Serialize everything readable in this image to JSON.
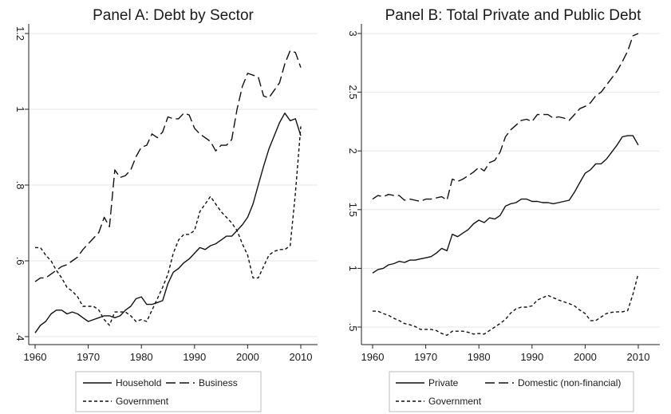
{
  "chart_data": [
    {
      "type": "line",
      "title": "Panel A: Debt by Sector",
      "xlabel": "",
      "ylabel": "",
      "xlim": [
        1960,
        2010
      ],
      "ylim": [
        0.4,
        1.2
      ],
      "xticks": [
        1960,
        1970,
        1980,
        1990,
        2000,
        2010
      ],
      "yticks": [
        0.4,
        0.6,
        0.8,
        1.0,
        1.2
      ],
      "ytick_labels": [
        ".4",
        ".6",
        ".8",
        "1",
        "1.2"
      ],
      "grid": true,
      "legend_position": "bottom",
      "series": [
        {
          "name": "Household",
          "style": "solid",
          "x": [
            1960,
            1961,
            1962,
            1963,
            1964,
            1965,
            1966,
            1967,
            1968,
            1969,
            1970,
            1971,
            1972,
            1973,
            1974,
            1975,
            1976,
            1977,
            1978,
            1979,
            1980,
            1981,
            1982,
            1983,
            1984,
            1985,
            1986,
            1987,
            1988,
            1989,
            1990,
            1991,
            1992,
            1993,
            1994,
            1995,
            1996,
            1997,
            1998,
            1999,
            2000,
            2001,
            2002,
            2003,
            2004,
            2005,
            2006,
            2007,
            2008,
            2009,
            2010
          ],
          "y": [
            0.41,
            0.43,
            0.44,
            0.46,
            0.47,
            0.47,
            0.46,
            0.465,
            0.46,
            0.45,
            0.44,
            0.445,
            0.45,
            0.455,
            0.455,
            0.45,
            0.455,
            0.47,
            0.48,
            0.5,
            0.505,
            0.485,
            0.485,
            0.49,
            0.495,
            0.54,
            0.57,
            0.58,
            0.595,
            0.605,
            0.62,
            0.635,
            0.63,
            0.64,
            0.645,
            0.655,
            0.665,
            0.665,
            0.68,
            0.695,
            0.715,
            0.75,
            0.8,
            0.85,
            0.895,
            0.93,
            0.965,
            0.99,
            0.97,
            0.975,
            0.93
          ]
        },
        {
          "name": "Business",
          "style": "longdash",
          "x": [
            1960,
            1961,
            1962,
            1963,
            1964,
            1965,
            1966,
            1967,
            1968,
            1969,
            1970,
            1971,
            1972,
            1973,
            1974,
            1975,
            1976,
            1977,
            1978,
            1979,
            1980,
            1981,
            1982,
            1983,
            1984,
            1985,
            1986,
            1987,
            1988,
            1989,
            1990,
            1991,
            1992,
            1993,
            1994,
            1995,
            1996,
            1997,
            1998,
            1999,
            2000,
            2001,
            2002,
            2003,
            2004,
            2005,
            2006,
            2007,
            2008,
            2009,
            2010
          ],
          "y": [
            0.545,
            0.555,
            0.555,
            0.565,
            0.575,
            0.585,
            0.59,
            0.6,
            0.61,
            0.63,
            0.645,
            0.66,
            0.675,
            0.715,
            0.69,
            0.84,
            0.82,
            0.825,
            0.84,
            0.875,
            0.9,
            0.905,
            0.935,
            0.925,
            0.94,
            0.98,
            0.975,
            0.975,
            0.99,
            0.985,
            0.95,
            0.935,
            0.925,
            0.915,
            0.89,
            0.905,
            0.905,
            0.92,
            1.0,
            1.06,
            1.095,
            1.09,
            1.085,
            1.035,
            1.03,
            1.05,
            1.07,
            1.12,
            1.155,
            1.15,
            1.11
          ]
        },
        {
          "name": "Government",
          "style": "shortdash",
          "x": [
            1960,
            1961,
            1962,
            1963,
            1964,
            1965,
            1966,
            1967,
            1968,
            1969,
            1970,
            1971,
            1972,
            1973,
            1974,
            1975,
            1976,
            1977,
            1978,
            1979,
            1980,
            1981,
            1982,
            1983,
            1984,
            1985,
            1986,
            1987,
            1988,
            1989,
            1990,
            1991,
            1992,
            1993,
            1994,
            1995,
            1996,
            1997,
            1998,
            1999,
            2000,
            2001,
            2002,
            2003,
            2004,
            2005,
            2006,
            2007,
            2008,
            2009,
            2010
          ],
          "y": [
            0.635,
            0.635,
            0.615,
            0.6,
            0.575,
            0.555,
            0.53,
            0.52,
            0.505,
            0.48,
            0.48,
            0.48,
            0.47,
            0.445,
            0.43,
            0.465,
            0.465,
            0.465,
            0.455,
            0.44,
            0.445,
            0.44,
            0.47,
            0.5,
            0.53,
            0.565,
            0.62,
            0.655,
            0.67,
            0.67,
            0.68,
            0.73,
            0.75,
            0.77,
            0.75,
            0.73,
            0.715,
            0.7,
            0.68,
            0.645,
            0.615,
            0.555,
            0.555,
            0.585,
            0.615,
            0.625,
            0.63,
            0.63,
            0.64,
            0.78,
            0.955
          ]
        }
      ]
    },
    {
      "type": "line",
      "title": "Panel B: Total Private and Public Debt",
      "xlabel": "",
      "ylabel": "",
      "xlim": [
        1960,
        2010
      ],
      "ylim": [
        0.5,
        3.0
      ],
      "xticks": [
        1960,
        1970,
        1980,
        1990,
        2000,
        2010
      ],
      "yticks": [
        0.5,
        1.0,
        1.5,
        2.0,
        2.5,
        3.0
      ],
      "ytick_labels": [
        ".5",
        "1",
        "1.5",
        "2",
        "2.5",
        "3"
      ],
      "grid": true,
      "legend_position": "bottom",
      "series": [
        {
          "name": "Private",
          "style": "solid",
          "x": [
            1960,
            1961,
            1962,
            1963,
            1964,
            1965,
            1966,
            1967,
            1968,
            1969,
            1970,
            1971,
            1972,
            1973,
            1974,
            1975,
            1976,
            1977,
            1978,
            1979,
            1980,
            1981,
            1982,
            1983,
            1984,
            1985,
            1986,
            1987,
            1988,
            1989,
            1990,
            1991,
            1992,
            1993,
            1994,
            1995,
            1996,
            1997,
            1998,
            1999,
            2000,
            2001,
            2002,
            2003,
            2004,
            2005,
            2006,
            2007,
            2008,
            2009,
            2010
          ],
          "y": [
            0.96,
            0.99,
            1.0,
            1.03,
            1.04,
            1.06,
            1.05,
            1.07,
            1.07,
            1.08,
            1.09,
            1.1,
            1.13,
            1.17,
            1.15,
            1.29,
            1.27,
            1.3,
            1.33,
            1.38,
            1.41,
            1.39,
            1.43,
            1.42,
            1.45,
            1.53,
            1.55,
            1.56,
            1.59,
            1.59,
            1.57,
            1.57,
            1.56,
            1.56,
            1.55,
            1.56,
            1.57,
            1.58,
            1.65,
            1.73,
            1.81,
            1.84,
            1.89,
            1.89,
            1.93,
            1.99,
            2.05,
            2.12,
            2.13,
            2.13,
            2.05
          ]
        },
        {
          "name": "Domestic (non-financial)",
          "style": "longdash",
          "x": [
            1960,
            1961,
            1962,
            1963,
            1964,
            1965,
            1966,
            1967,
            1968,
            1969,
            1970,
            1971,
            1972,
            1973,
            1974,
            1975,
            1976,
            1977,
            1978,
            1979,
            1980,
            1981,
            1982,
            1983,
            1984,
            1985,
            1986,
            1987,
            1988,
            1989,
            1990,
            1991,
            1992,
            1993,
            1994,
            1995,
            1996,
            1997,
            1998,
            1999,
            2000,
            2001,
            2002,
            2003,
            2004,
            2005,
            2006,
            2007,
            2008,
            2009,
            2010
          ],
          "y": [
            1.59,
            1.62,
            1.61,
            1.63,
            1.62,
            1.62,
            1.58,
            1.59,
            1.58,
            1.57,
            1.59,
            1.59,
            1.6,
            1.61,
            1.58,
            1.76,
            1.74,
            1.76,
            1.79,
            1.82,
            1.86,
            1.83,
            1.9,
            1.92,
            1.99,
            2.12,
            2.18,
            2.22,
            2.26,
            2.27,
            2.25,
            2.31,
            2.31,
            2.31,
            2.28,
            2.29,
            2.28,
            2.26,
            2.31,
            2.36,
            2.38,
            2.41,
            2.47,
            2.5,
            2.56,
            2.62,
            2.68,
            2.76,
            2.85,
            2.98,
            3.0
          ]
        },
        {
          "name": "Government",
          "style": "shortdash",
          "x": [
            1960,
            1961,
            1962,
            1963,
            1964,
            1965,
            1966,
            1967,
            1968,
            1969,
            1970,
            1971,
            1972,
            1973,
            1974,
            1975,
            1976,
            1977,
            1978,
            1979,
            1980,
            1981,
            1982,
            1983,
            1984,
            1985,
            1986,
            1987,
            1988,
            1989,
            1990,
            1991,
            1992,
            1993,
            1994,
            1995,
            1996,
            1997,
            1998,
            1999,
            2000,
            2001,
            2002,
            2003,
            2004,
            2005,
            2006,
            2007,
            2008,
            2009,
            2010
          ],
          "y": [
            0.635,
            0.635,
            0.615,
            0.6,
            0.575,
            0.555,
            0.53,
            0.52,
            0.505,
            0.48,
            0.48,
            0.48,
            0.47,
            0.445,
            0.43,
            0.465,
            0.465,
            0.465,
            0.455,
            0.44,
            0.445,
            0.44,
            0.47,
            0.5,
            0.53,
            0.565,
            0.62,
            0.655,
            0.67,
            0.67,
            0.68,
            0.73,
            0.75,
            0.77,
            0.75,
            0.73,
            0.715,
            0.7,
            0.68,
            0.645,
            0.615,
            0.555,
            0.555,
            0.585,
            0.615,
            0.625,
            0.63,
            0.63,
            0.64,
            0.78,
            0.955
          ]
        }
      ]
    }
  ]
}
